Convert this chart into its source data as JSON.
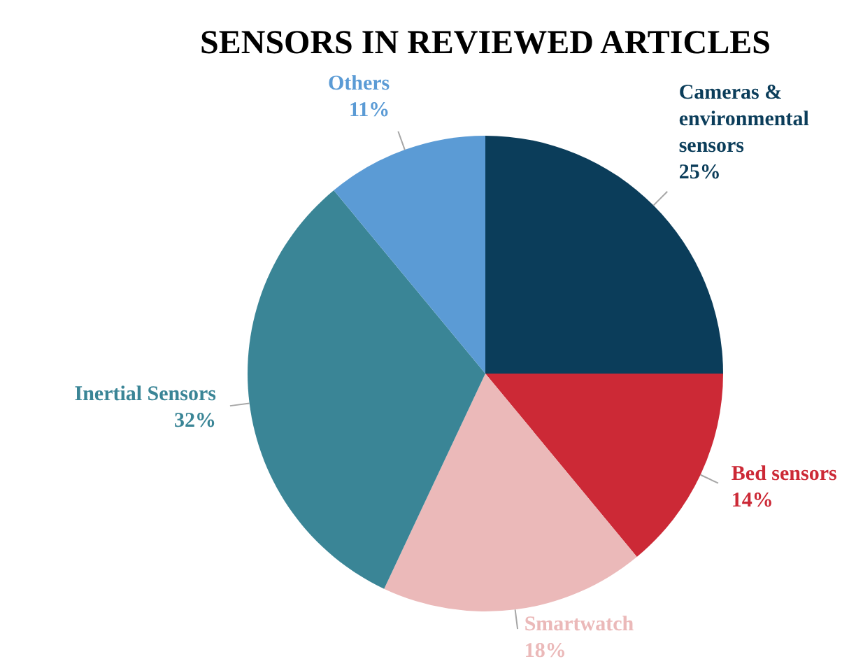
{
  "chart_data": {
    "type": "pie",
    "title": "SENSORS IN REVIEWED ARTICLES",
    "categories": [
      "Cameras & environmental sensors",
      "Bed sensors",
      "Smartwatch",
      "Inertial Sensors",
      "Others"
    ],
    "values": [
      25,
      14,
      18,
      32,
      11
    ],
    "colors": [
      "#0b3d5a",
      "#cc2936",
      "#ebb9b9",
      "#3a8596",
      "#5b9bd5"
    ],
    "value_labels": [
      "25%",
      "14%",
      "18%",
      "32%",
      "11%"
    ]
  }
}
